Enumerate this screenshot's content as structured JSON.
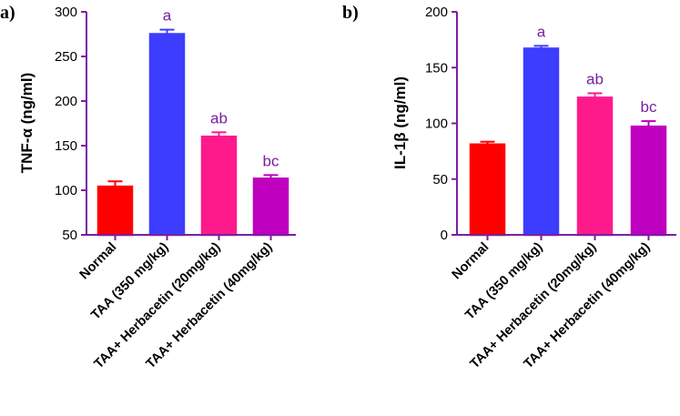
{
  "axis_color": "#7a1fa2",
  "sig_color": "#7a1fa2",
  "chart_data": [
    {
      "panel": "a)",
      "type": "bar",
      "ylabel": "TNF-α (ng/ml)",
      "ylim": [
        50,
        300
      ],
      "yticks": [
        50,
        100,
        150,
        200,
        250,
        300
      ],
      "categories": [
        "Normal",
        "TAA (350 mg/kg)",
        "TAA+ Herbacetin (20mg/kg)",
        "TAA+ Herbacetin (40mg/kg)"
      ],
      "values": [
        104,
        275,
        160,
        113
      ],
      "errors": [
        6,
        5,
        5,
        4
      ],
      "significance": [
        "",
        "a",
        "ab",
        "bc"
      ],
      "colors": [
        "#ff0000",
        "#3d3dff",
        "#ff1a8c",
        "#bf00bf"
      ]
    },
    {
      "panel": "b)",
      "type": "bar",
      "ylabel": "IL-1β (ng/ml)",
      "ylim": [
        0,
        200
      ],
      "yticks": [
        0,
        50,
        100,
        150,
        200
      ],
      "categories": [
        "Normal",
        "TAA (350 mg/kg)",
        "TAA+ Herbacetin (20mg/kg)",
        "TAA+ Herbacetin (40mg/kg)"
      ],
      "values": [
        81,
        167,
        123,
        97
      ],
      "errors": [
        2.5,
        2.5,
        4,
        5
      ],
      "significance": [
        "",
        "a",
        "ab",
        "bc"
      ],
      "colors": [
        "#ff0000",
        "#3d3dff",
        "#ff1a8c",
        "#bf00bf"
      ]
    }
  ]
}
